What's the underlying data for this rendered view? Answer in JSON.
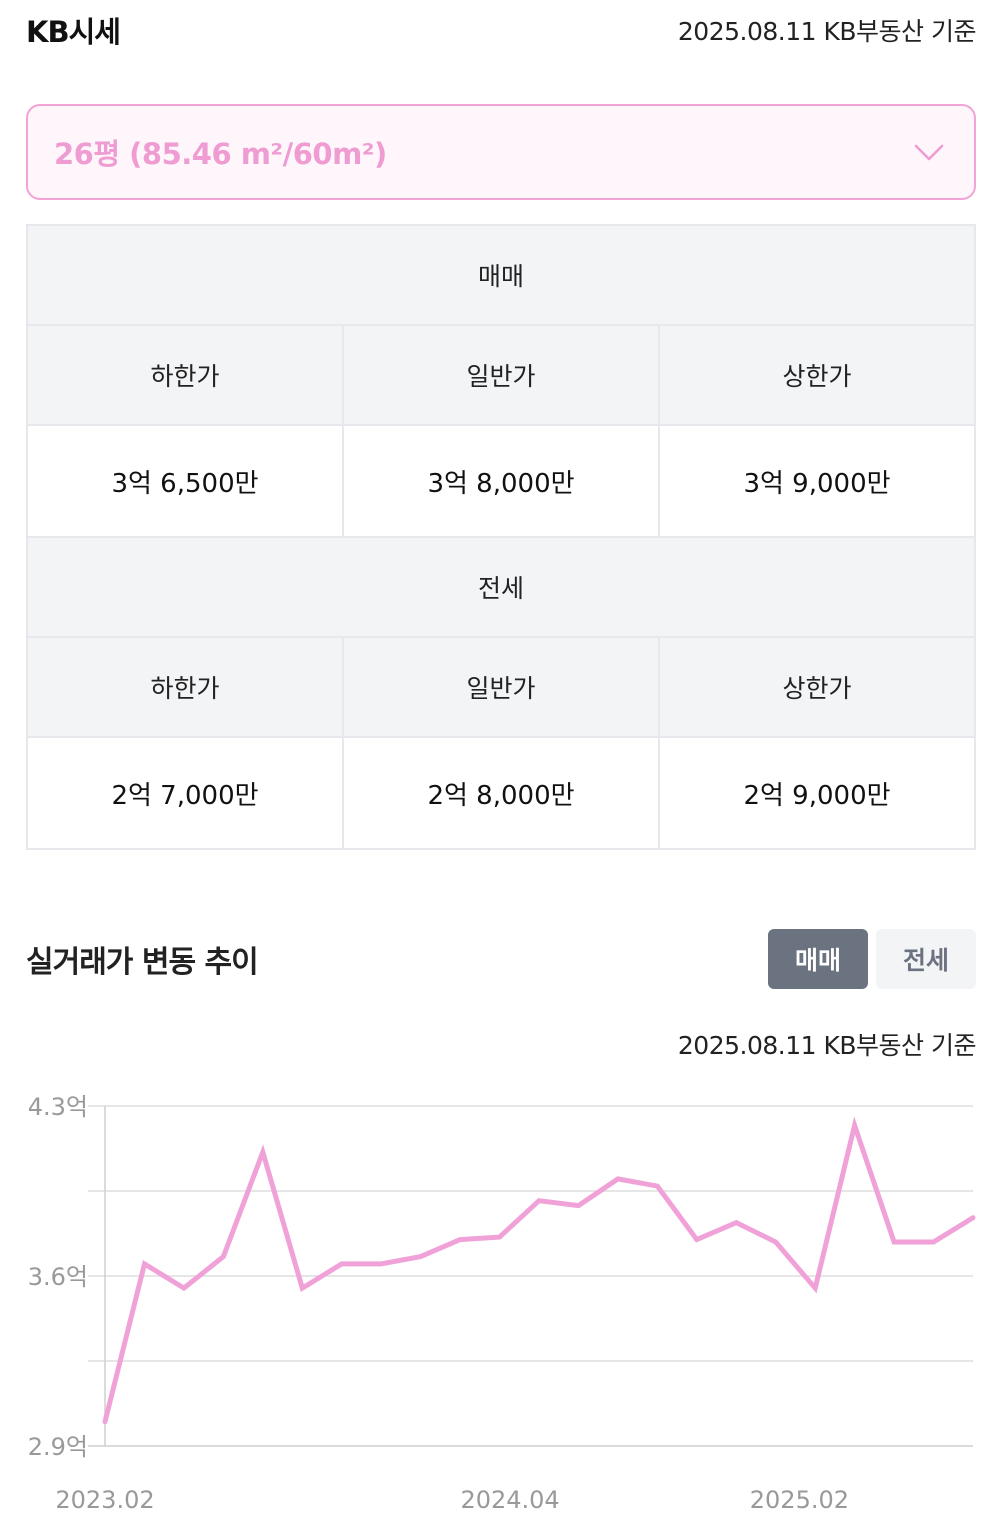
{
  "kb": {
    "title": "KB시세",
    "basis": "2025.08.11 KB부동산 기준",
    "size_selected": "26평 (85.46 m²/60m²)"
  },
  "table": {
    "sale": {
      "section": "매매",
      "headers": [
        "하한가",
        "일반가",
        "상한가"
      ],
      "values": [
        "3억 6,500만",
        "3억 8,000만",
        "3억 9,000만"
      ]
    },
    "jeonse": {
      "section": "전세",
      "headers": [
        "하한가",
        "일반가",
        "상한가"
      ],
      "values": [
        "2억 7,000만",
        "2억 8,000만",
        "2억 9,000만"
      ]
    }
  },
  "trend": {
    "title": "실거래가 변동 추이",
    "tabs": [
      "매매",
      "전세"
    ],
    "active_tab": "매매",
    "basis": "2025.08.11 KB부동산 기준"
  },
  "colors": {
    "accent": "#ee9cd2",
    "line": "#f0a2d8",
    "tab_active": "#6b7280",
    "tab_inactive": "#f3f4f6"
  },
  "chart_data": {
    "type": "line",
    "x_ticks": [
      "2023.02",
      "2024.04",
      "2025.02"
    ],
    "y_ticks": [
      "4.3억",
      "3.6억",
      "2.9억"
    ],
    "ylim": [
      2.9,
      4.3
    ],
    "xlim": [
      "2023.02",
      "2025.08"
    ],
    "grid": true,
    "series": [
      {
        "x": [
          "2023.02",
          "2023.03",
          "2023.04",
          "2023.05",
          "2023.06",
          "2023.07",
          "2023.08",
          "2023.09",
          "2023.10",
          "2023.11",
          "2023.12",
          "2024.01",
          "2024.02",
          "2024.04",
          "2024.05",
          "2024.06",
          "2024.07",
          "2024.08",
          "2024.09",
          "2024.10",
          "2024.11",
          "2024.12",
          "2025.01",
          "2025.02",
          "2025.03",
          "2025.04",
          "2025.05",
          "2025.06",
          "2025.07",
          "2025.08"
        ],
        "values": [
          3.0,
          3.65,
          3.55,
          3.68,
          4.11,
          3.55,
          3.65,
          3.65,
          3.68,
          3.75,
          3.76,
          3.91,
          3.89,
          4.0,
          3.97,
          3.75,
          3.82,
          3.74,
          3.55,
          4.22,
          3.74,
          3.74,
          3.84,
          null,
          null,
          null,
          null,
          null,
          null,
          null
        ]
      }
    ]
  }
}
